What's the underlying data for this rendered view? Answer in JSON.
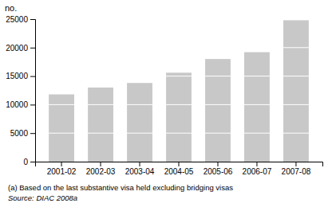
{
  "chart_data": {
    "type": "bar",
    "categories": [
      "2001-02",
      "2002-03",
      "2003-04",
      "2004-05",
      "2005-06",
      "2006-07",
      "2007-08"
    ],
    "values": [
      11800,
      13000,
      13800,
      15600,
      18000,
      19200,
      24800
    ],
    "color": "#c8c8c8",
    "ylabel": "no.",
    "ylim": [
      0,
      25000
    ],
    "yticks": [
      0,
      5000,
      10000,
      15000,
      20000,
      25000
    ],
    "grid": false,
    "annotations": [
      "(a) Based on the last substantive visa held excluding bridging visas",
      "Source: DIAC 2008a"
    ]
  }
}
